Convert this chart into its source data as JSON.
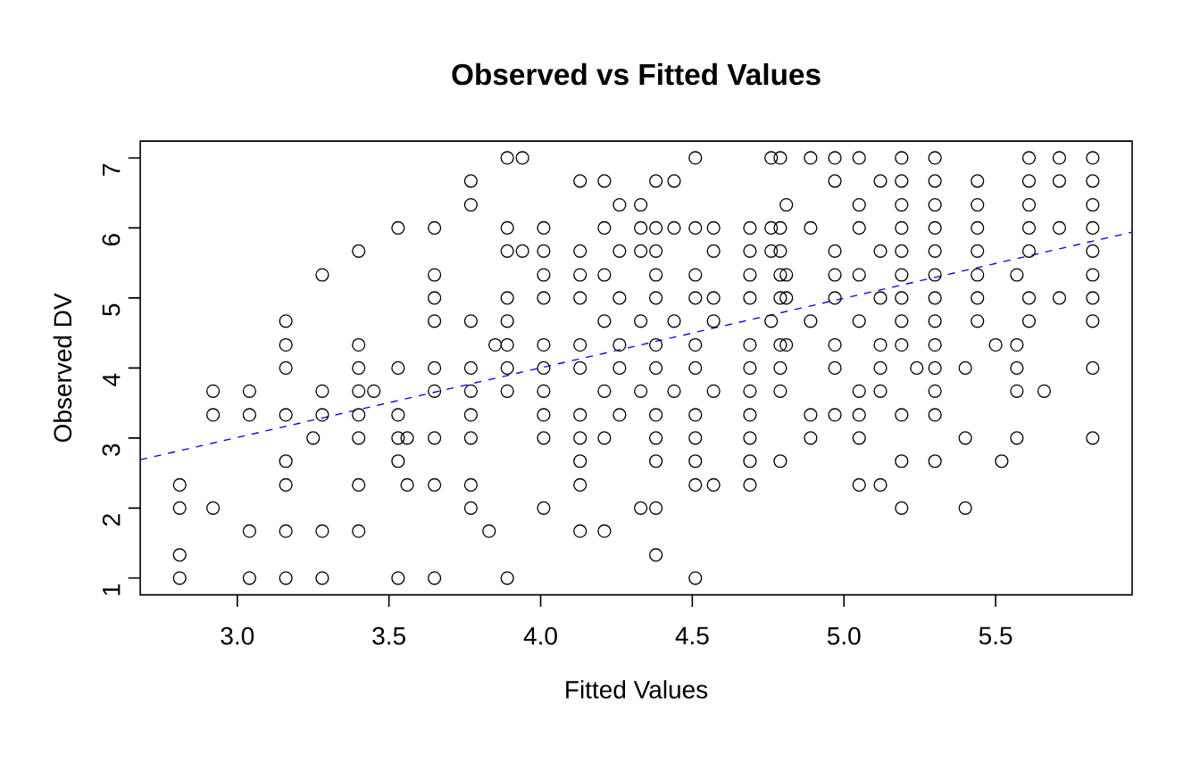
{
  "chart_data": {
    "type": "scatter",
    "title": "Observed vs Fitted Values",
    "xlabel": "Fitted Values",
    "ylabel": "Observed DV",
    "xlim": [
      2.68,
      5.95
    ],
    "ylim": [
      0.76,
      7.24
    ],
    "xticks": [
      {
        "value": 3,
        "label": "3.0"
      },
      3.5,
      {
        "value": 4,
        "label": "4.0"
      },
      4.5,
      {
        "value": 5,
        "label": "5.0"
      },
      5.5
    ],
    "yticks": [
      1,
      2,
      3,
      4,
      5,
      6,
      7
    ],
    "marker": "circle",
    "series": [
      {
        "color": "#000000",
        "x": [
          2.81,
          2.81,
          2.81,
          2.81,
          2.92,
          2.92,
          2.92,
          3.04,
          3.04,
          3.04,
          3.04,
          3.16,
          3.16,
          3.16,
          3.16,
          3.16,
          3.16,
          3.16,
          3.16,
          3.28,
          3.28,
          3.28,
          3.28,
          3.28,
          3.25,
          3.4,
          3.4,
          3.4,
          3.4,
          3.4,
          3.4,
          3.4,
          3.4,
          3.45,
          3.53,
          3.53,
          3.53,
          3.53,
          3.53,
          3.53,
          3.56,
          3.56,
          3.65,
          3.65,
          3.65,
          3.65,
          3.65,
          3.65,
          3.65,
          3.65,
          3.65,
          3.77,
          3.77,
          3.77,
          3.77,
          3.77,
          3.77,
          3.77,
          3.77,
          3.77,
          3.89,
          3.94,
          4.13,
          4.21,
          4.26,
          4.33,
          4.38,
          4.44,
          4.51,
          4.76,
          4.81,
          3.89,
          4.01,
          4.21,
          4.33,
          4.38,
          4.44,
          4.51,
          4.57,
          4.69,
          4.76,
          3.89,
          3.94,
          4.01,
          4.13,
          4.26,
          4.33,
          4.38,
          4.57,
          4.69,
          4.76,
          4.01,
          4.13,
          4.21,
          4.38,
          4.51,
          4.69,
          4.81,
          3.89,
          4.01,
          4.13,
          4.26,
          4.38,
          4.51,
          4.57,
          4.69,
          4.81,
          3.89,
          4.21,
          4.33,
          4.44,
          4.57,
          4.76,
          3.85,
          3.89,
          4.01,
          4.13,
          4.26,
          4.38,
          4.51,
          4.69,
          4.81,
          3.89,
          4.01,
          4.13,
          4.26,
          4.38,
          4.51,
          4.69,
          3.89,
          4.01,
          4.21,
          4.33,
          4.44,
          4.57,
          4.69,
          4.01,
          4.13,
          4.26,
          4.38,
          4.51,
          4.69,
          4.01,
          4.13,
          4.21,
          4.38,
          4.51,
          4.69,
          4.13,
          4.38,
          4.51,
          4.69,
          4.13,
          4.51,
          4.57,
          4.69,
          4.01,
          4.33,
          4.38,
          3.83,
          4.13,
          4.21,
          4.38,
          3.89,
          4.51,
          4.79,
          4.89,
          4.97,
          5.05,
          5.19,
          5.3,
          5.61,
          5.71,
          5.82,
          4.97,
          5.12,
          5.19,
          5.3,
          5.44,
          5.61,
          5.71,
          5.82,
          5.05,
          5.19,
          5.3,
          5.44,
          5.61,
          5.82,
          4.79,
          4.89,
          5.05,
          5.19,
          5.3,
          5.44,
          5.61,
          5.71,
          5.82,
          4.79,
          4.97,
          5.12,
          5.19,
          5.3,
          5.44,
          5.61,
          5.82,
          4.79,
          4.97,
          5.05,
          5.19,
          5.3,
          5.44,
          5.57,
          5.82,
          4.79,
          4.97,
          5.12,
          5.19,
          5.3,
          5.44,
          5.61,
          5.71,
          5.82,
          4.89,
          5.05,
          5.19,
          5.3,
          5.44,
          5.61,
          5.82,
          4.79,
          4.97,
          5.12,
          5.19,
          5.3,
          5.5,
          5.57,
          4.79,
          4.97,
          5.12,
          5.24,
          5.3,
          5.4,
          5.57,
          5.82,
          4.79,
          5.05,
          5.12,
          5.3,
          5.57,
          5.66,
          4.89,
          4.97,
          5.05,
          5.19,
          5.3,
          4.89,
          5.05,
          5.4,
          5.57,
          5.82,
          4.79,
          5.19,
          5.3,
          5.52,
          5.05,
          5.12,
          5.19,
          5.4
        ],
        "values": [
          1,
          1.33,
          2,
          2.33,
          2,
          3.33,
          3.67,
          1,
          1.67,
          3.33,
          3.67,
          1,
          1.67,
          2.33,
          2.67,
          3.33,
          4,
          4.33,
          4.67,
          1,
          1.67,
          3.33,
          3.67,
          5.33,
          3,
          1.67,
          2.33,
          3,
          3.33,
          3.67,
          4,
          4.33,
          5.67,
          3.67,
          1,
          2.67,
          3,
          3.33,
          4,
          6,
          3,
          2.33,
          1,
          2.33,
          3.67,
          4,
          4.67,
          5,
          5.33,
          6,
          3,
          6.33,
          6.67,
          4.67,
          4,
          3.67,
          3.33,
          3,
          2.33,
          2,
          7,
          7,
          6.67,
          6.67,
          6.33,
          6.33,
          6.67,
          6.67,
          7,
          7,
          6.33,
          6,
          6,
          6,
          6,
          6,
          6,
          6,
          6,
          6,
          6,
          5.67,
          5.67,
          5.67,
          5.67,
          5.67,
          5.67,
          5.67,
          5.67,
          5.67,
          5.67,
          5.33,
          5.33,
          5.33,
          5.33,
          5.33,
          5.33,
          5.33,
          5,
          5,
          5,
          5,
          5,
          5,
          5,
          5,
          5,
          4.67,
          4.67,
          4.67,
          4.67,
          4.67,
          4.67,
          4.33,
          4.33,
          4.33,
          4.33,
          4.33,
          4.33,
          4.33,
          4.33,
          4.33,
          4,
          4,
          4,
          4,
          4,
          4,
          4,
          3.67,
          3.67,
          3.67,
          3.67,
          3.67,
          3.67,
          3.67,
          3.33,
          3.33,
          3.33,
          3.33,
          3.33,
          3.33,
          3,
          3,
          3,
          3,
          3,
          3,
          2.67,
          2.67,
          2.67,
          2.67,
          2.33,
          2.33,
          2.33,
          2.33,
          2,
          2,
          2,
          1.67,
          1.67,
          1.67,
          1.33,
          1,
          1,
          7,
          7,
          7,
          7,
          7,
          7,
          7,
          7,
          7,
          6.67,
          6.67,
          6.67,
          6.67,
          6.67,
          6.67,
          6.67,
          6.67,
          6.33,
          6.33,
          6.33,
          6.33,
          6.33,
          6.33,
          6,
          6,
          6,
          6,
          6,
          6,
          6,
          6,
          6,
          5.67,
          5.67,
          5.67,
          5.67,
          5.67,
          5.67,
          5.67,
          5.67,
          5.33,
          5.33,
          5.33,
          5.33,
          5.33,
          5.33,
          5.33,
          5.33,
          5,
          5,
          5,
          5,
          5,
          5,
          5,
          5,
          5,
          4.67,
          4.67,
          4.67,
          4.67,
          4.67,
          4.67,
          4.67,
          4.33,
          4.33,
          4.33,
          4.33,
          4.33,
          4.33,
          4.33,
          4,
          4,
          4,
          4,
          4,
          4,
          4,
          4,
          3.67,
          3.67,
          3.67,
          3.67,
          3.67,
          3.67,
          3.33,
          3.33,
          3.33,
          3.33,
          3.33,
          3,
          3,
          3,
          3,
          3,
          2.67,
          2.67,
          2.67,
          2.67,
          2.33,
          2.33,
          2,
          2
        ]
      },
      {
        "type": "line",
        "color": "#0000ff",
        "line_style": "dashed",
        "marker": "none",
        "x": [
          2.68,
          5.95
        ],
        "values": [
          2.69,
          5.94
        ]
      }
    ]
  }
}
